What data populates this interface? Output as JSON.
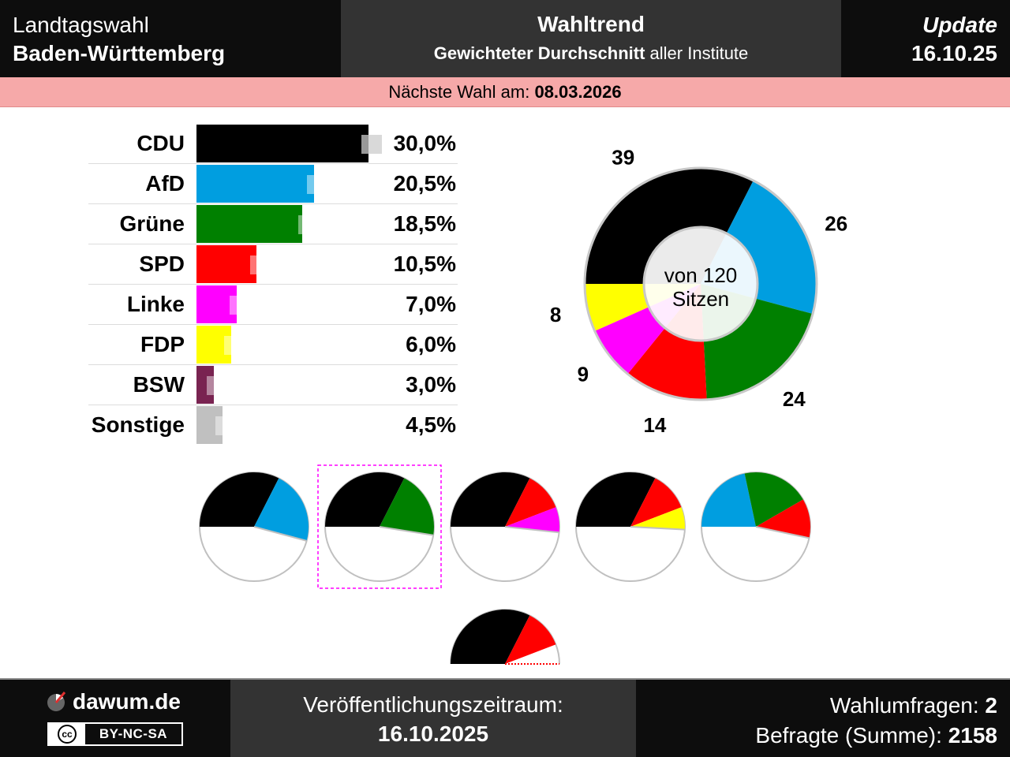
{
  "header": {
    "left_line1": "Landtagswahl",
    "left_line2": "Baden-Württemberg",
    "center_title": "Wahltrend",
    "center_sub_bold": "Gewichteter Durchschnitt",
    "center_sub_rest": " aller Institute",
    "right_label": "Update",
    "right_date": "16.10.25"
  },
  "next_election": {
    "label": "Nächste Wahl am: ",
    "date": "08.03.2026"
  },
  "chart_data": {
    "type": "bar",
    "title": "Wahltrend",
    "max_value": 30,
    "categories": [
      "CDU",
      "AfD",
      "Grüne",
      "SPD",
      "Linke",
      "FDP",
      "BSW",
      "Sonstige"
    ],
    "values": [
      30.0,
      20.5,
      18.5,
      10.5,
      7.0,
      6.0,
      3.0,
      4.5
    ],
    "value_labels": [
      "30,0%",
      "20,5%",
      "18,5%",
      "10,5%",
      "7,0%",
      "6,0%",
      "3,0%",
      "4,5%"
    ],
    "previous_values": [
      31.0,
      21.5,
      20.0,
      11.5,
      8.0,
      7.0,
      4.0,
      5.5
    ],
    "colors": [
      "#000000",
      "#009ee0",
      "#008000",
      "#ff0000",
      "#ff00ff",
      "#ffff00",
      "#792351",
      "#c0c0c0"
    ],
    "seats": {
      "total_label": "von 120",
      "total_label2": "Sitzen",
      "total": 120,
      "parties": [
        "CDU",
        "AfD",
        "Grüne",
        "SPD",
        "Linke",
        "FDP"
      ],
      "values": [
        39,
        26,
        24,
        14,
        9,
        8
      ],
      "labels": [
        "39",
        "26",
        "24",
        "14",
        "9",
        "8"
      ],
      "colors": [
        "#000000",
        "#009ee0",
        "#008000",
        "#ff0000",
        "#ff00ff",
        "#ffff00"
      ]
    },
    "coalitions": [
      {
        "parties": [
          "CDU",
          "AfD"
        ],
        "seats": [
          39,
          26
        ],
        "highlighted": false,
        "majority": true
      },
      {
        "parties": [
          "CDU",
          "Grüne"
        ],
        "seats": [
          39,
          24
        ],
        "highlighted": true,
        "majority": true
      },
      {
        "parties": [
          "CDU",
          "SPD",
          "Linke"
        ],
        "seats": [
          39,
          14,
          9
        ],
        "highlighted": false,
        "majority": true
      },
      {
        "parties": [
          "CDU",
          "SPD",
          "FDP"
        ],
        "seats": [
          39,
          14,
          8
        ],
        "highlighted": false,
        "majority": true
      },
      {
        "parties": [
          "AfD",
          "Grüne",
          "SPD"
        ],
        "seats": [
          26,
          24,
          14
        ],
        "highlighted": false,
        "majority": true
      },
      {
        "parties": [
          "CDU",
          "SPD"
        ],
        "seats": [
          39,
          14
        ],
        "highlighted": false,
        "majority": false
      }
    ]
  },
  "footer": {
    "brand": "dawum.de",
    "license": "BY-NC-SA",
    "license_cc": "cc",
    "period_label": "Veröffentlichungszeitraum:",
    "period_value": "16.10.2025",
    "polls_label": "Wahlumfragen: ",
    "polls_value": "2",
    "respondents_label": "Befragte (Summe): ",
    "respondents_value": "2158"
  }
}
